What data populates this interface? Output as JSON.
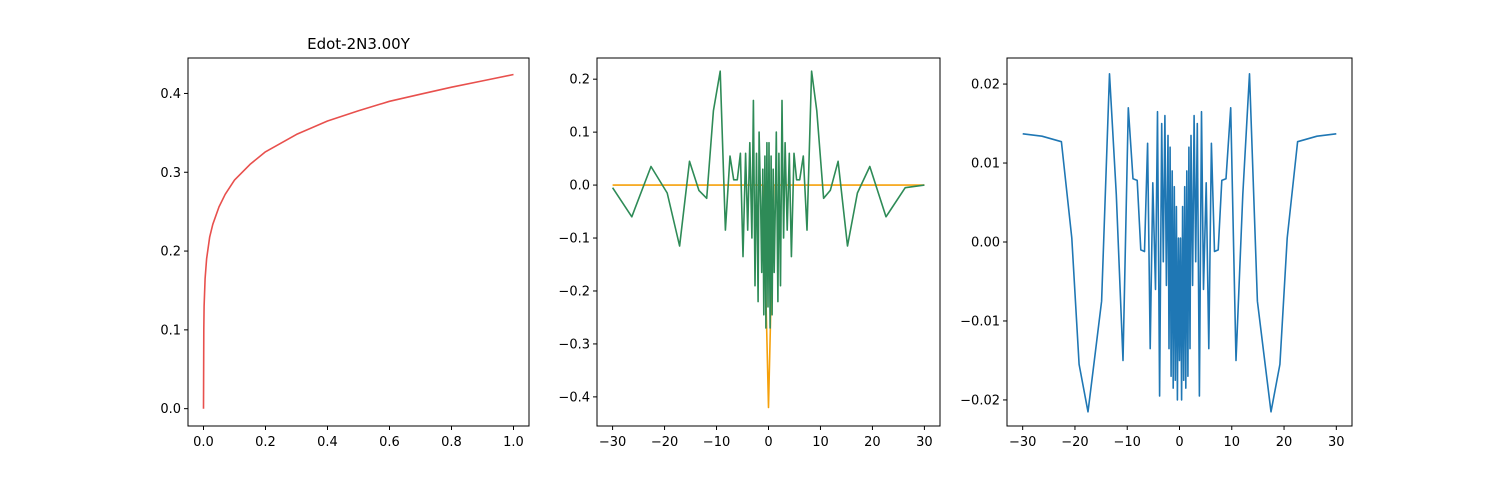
{
  "chart_data": [
    {
      "type": "line",
      "title": "Edot-2N3.00Y",
      "xlim": [
        -0.05,
        1.05
      ],
      "ylim": [
        -0.022,
        0.445
      ],
      "xticks": [
        "0.0",
        "0.2",
        "0.4",
        "0.6",
        "0.8",
        "1.0"
      ],
      "yticks": [
        "0.0",
        "0.1",
        "0.2",
        "0.3",
        "0.4"
      ],
      "series": [
        {
          "color": "#e8504d",
          "x": [
            0,
            0.001,
            0.002,
            0.005,
            0.01,
            0.02,
            0.03,
            0.05,
            0.07,
            0.1,
            0.15,
            0.2,
            0.3,
            0.4,
            0.5,
            0.6,
            0.7,
            0.8,
            0.9,
            1.0
          ],
          "y": [
            0,
            0.1,
            0.13,
            0.165,
            0.19,
            0.218,
            0.234,
            0.256,
            0.272,
            0.29,
            0.31,
            0.326,
            0.348,
            0.365,
            0.378,
            0.39,
            0.399,
            0.408,
            0.416,
            0.424
          ]
        }
      ]
    },
    {
      "type": "line",
      "title": "",
      "xlim": [
        -33,
        33
      ],
      "ylim": [
        -0.455,
        0.24
      ],
      "xticks": [
        "−30",
        "−20",
        "−10",
        "0",
        "10",
        "20",
        "30"
      ],
      "yticks": [
        "0.2",
        "0.1",
        "0.0",
        "−0.1",
        "−0.2",
        "−0.3",
        "−0.4"
      ],
      "series": [
        {
          "color": "#f5a00a",
          "x": [
            -30,
            -1,
            0,
            1,
            30
          ],
          "y": [
            0,
            0,
            -0.42,
            0,
            0
          ]
        },
        {
          "color": "#2e8b57",
          "x": [
            -30,
            -26.3,
            -22.6,
            -19.5,
            -17.1,
            -15.2,
            -13.4,
            -11.9,
            -10.6,
            -9.3,
            -8.3,
            -7.4,
            -6.7,
            -6,
            -5.4,
            -4.9,
            -4.4,
            -4,
            -3.6,
            -3.2,
            -2.9,
            -2.6,
            -2.3,
            -2,
            -1.8,
            -1.5,
            -1.3,
            -1.1,
            -0.9,
            -0.7,
            -0.5,
            -0.3,
            -0.1,
            0.1,
            0.3,
            0.5,
            0.7,
            0.9,
            1.1,
            1.3,
            1.5,
            1.8,
            2,
            2.3,
            2.6,
            2.9,
            3.2,
            3.6,
            4,
            4.4,
            4.9,
            5.4,
            6,
            6.7,
            7.4,
            8.3,
            9.3,
            10.6,
            11.9,
            13.4,
            15.2,
            17.1,
            19.5,
            22.6,
            26.3,
            30
          ],
          "y": [
            -0.005,
            -0.06,
            0.035,
            -0.015,
            -0.115,
            0.045,
            -0.01,
            -0.025,
            0.14,
            0.215,
            -0.085,
            0.055,
            0.01,
            0.01,
            0.06,
            -0.135,
            0.06,
            -0.085,
            0.08,
            -0.1,
            0.16,
            -0.19,
            0.06,
            -0.22,
            0.1,
            -0.04,
            -0.165,
            0.03,
            -0.245,
            0.055,
            -0.27,
            0.08,
            -0.23,
            0.08,
            -0.27,
            0.055,
            -0.245,
            0.03,
            -0.165,
            -0.04,
            0.1,
            -0.22,
            0.06,
            -0.19,
            0.16,
            -0.1,
            0.08,
            -0.085,
            0.06,
            -0.135,
            0.06,
            0.01,
            0.01,
            0.055,
            -0.085,
            0.215,
            0.14,
            -0.025,
            -0.01,
            0.045,
            -0.115,
            -0.015,
            0.035,
            -0.06,
            -0.005,
            0
          ]
        }
      ]
    },
    {
      "type": "line",
      "title": "",
      "xlim": [
        -33,
        33
      ],
      "ylim": [
        -0.0233,
        0.0233
      ],
      "xticks": [
        "−30",
        "−20",
        "−10",
        "0",
        "10",
        "20",
        "30"
      ],
      "yticks": [
        "0.02",
        "0.01",
        "0.00",
        "−0.01",
        "−0.02"
      ],
      "series": [
        {
          "color": "#1f77b4",
          "x": [
            -30,
            -26.3,
            -22.6,
            -20.6,
            -19.2,
            -17.5,
            -16.1,
            -14.9,
            -13.4,
            -12.1,
            -10.8,
            -9.8,
            -8.9,
            -8.1,
            -7.4,
            -6.7,
            -6.1,
            -5.6,
            -5.1,
            -4.6,
            -4.2,
            -3.8,
            -3.4,
            -3.1,
            -2.8,
            -2.5,
            -2.2,
            -2,
            -1.8,
            -1.6,
            -1.4,
            -1.2,
            -1,
            -0.8,
            -0.6,
            -0.4,
            -0.2,
            0,
            0.2,
            0.4,
            0.6,
            0.8,
            1,
            1.2,
            1.4,
            1.6,
            1.8,
            2,
            2.2,
            2.5,
            2.8,
            3.1,
            3.4,
            3.8,
            4.2,
            4.6,
            5.1,
            5.6,
            6.1,
            6.7,
            7.4,
            8.1,
            8.9,
            9.8,
            10.8,
            12.1,
            13.4,
            14.9,
            16.1,
            17.5,
            19.2,
            20.6,
            22.6,
            26.3,
            30
          ],
          "y": [
            0.0137,
            0.0134,
            0.0127,
            0.0005,
            -0.0155,
            -0.0215,
            -0.014,
            -0.0075,
            0.0213,
            0.006,
            -0.015,
            0.017,
            0.008,
            0.0078,
            -0.001,
            -0.0012,
            0.0125,
            -0.0135,
            0.0075,
            -0.006,
            0.0165,
            -0.0195,
            0.015,
            -0.0025,
            0.016,
            -0.0055,
            0.0135,
            -0.0135,
            0.012,
            -0.017,
            0.009,
            -0.0185,
            0.007,
            -0.0175,
            0.0045,
            -0.02,
            0.0005,
            -0.015,
            0.0005,
            -0.02,
            0.0045,
            -0.0175,
            0.007,
            -0.0185,
            0.009,
            -0.017,
            0.012,
            -0.0135,
            0.0135,
            -0.0055,
            0.016,
            -0.0025,
            0.015,
            -0.0195,
            0.0165,
            -0.006,
            0.0075,
            -0.0135,
            0.0125,
            -0.0012,
            -0.001,
            0.0078,
            0.008,
            0.017,
            -0.015,
            0.006,
            0.0213,
            -0.0075,
            -0.014,
            -0.0215,
            -0.0155,
            0.0005,
            0.0127,
            0.0134,
            0.0137
          ]
        }
      ]
    }
  ]
}
